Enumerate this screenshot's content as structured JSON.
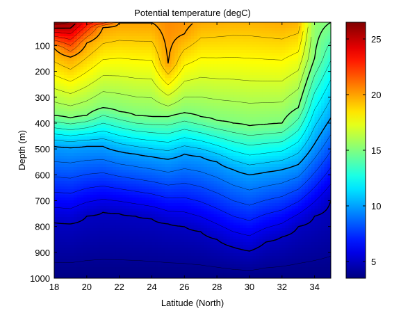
{
  "chart_data": {
    "type": "heatmap",
    "title": "Potential temperature (degC)",
    "xlabel": "Latitude (North)",
    "ylabel": "Depth (m)",
    "xlim": [
      18,
      35
    ],
    "ylim": [
      1000,
      10
    ],
    "y_reversed": true,
    "x_ticks": [
      18,
      20,
      22,
      24,
      26,
      28,
      30,
      32,
      34
    ],
    "y_ticks": [
      100,
      200,
      300,
      400,
      500,
      600,
      700,
      800,
      900,
      1000
    ],
    "colorbar": {
      "range": [
        3.5,
        26.5
      ],
      "ticks": [
        5,
        10,
        15,
        20,
        25
      ],
      "colormap": "jet"
    },
    "contour_interval": 1,
    "bold_contour_interval": 5,
    "grid": false,
    "legend": "colorbar-right",
    "surface_temperature": [
      [
        18,
        26.5
      ],
      [
        19,
        26.0
      ],
      [
        20,
        23.5
      ],
      [
        21,
        22.5
      ],
      [
        22,
        22.3
      ],
      [
        23,
        22.0
      ],
      [
        24,
        21.5
      ],
      [
        25,
        20.5
      ],
      [
        26,
        20.3
      ],
      [
        27,
        19.8
      ],
      [
        28,
        19.7
      ],
      [
        29,
        19.6
      ],
      [
        30,
        19.6
      ],
      [
        31,
        19.7
      ],
      [
        32,
        19.8
      ],
      [
        33,
        19.6
      ],
      [
        34,
        15.5
      ],
      [
        35,
        15.0
      ]
    ],
    "isotherm_depths": {
      "note_units": "degC : depth in m at each latitude 18..35 step 1",
      "x": [
        18,
        19,
        20,
        21,
        22,
        23,
        24,
        25,
        26,
        27,
        28,
        29,
        30,
        31,
        32,
        33,
        34,
        35
      ],
      "20": [
        110,
        145,
        90,
        30,
        10,
        10,
        10,
        170,
        55,
        10,
        10,
        10,
        10,
        10,
        10,
        10,
        10,
        10
      ],
      "15": [
        370,
        380,
        370,
        340,
        355,
        370,
        375,
        375,
        360,
        375,
        390,
        400,
        410,
        405,
        400,
        340,
        150,
        80
      ],
      "10": [
        490,
        495,
        490,
        490,
        510,
        520,
        530,
        540,
        520,
        530,
        550,
        580,
        600,
        590,
        580,
        560,
        480,
        380
      ],
      "5": [
        785,
        790,
        760,
        745,
        750,
        760,
        770,
        790,
        800,
        820,
        850,
        880,
        895,
        860,
        840,
        800,
        760,
        700
      ]
    }
  }
}
